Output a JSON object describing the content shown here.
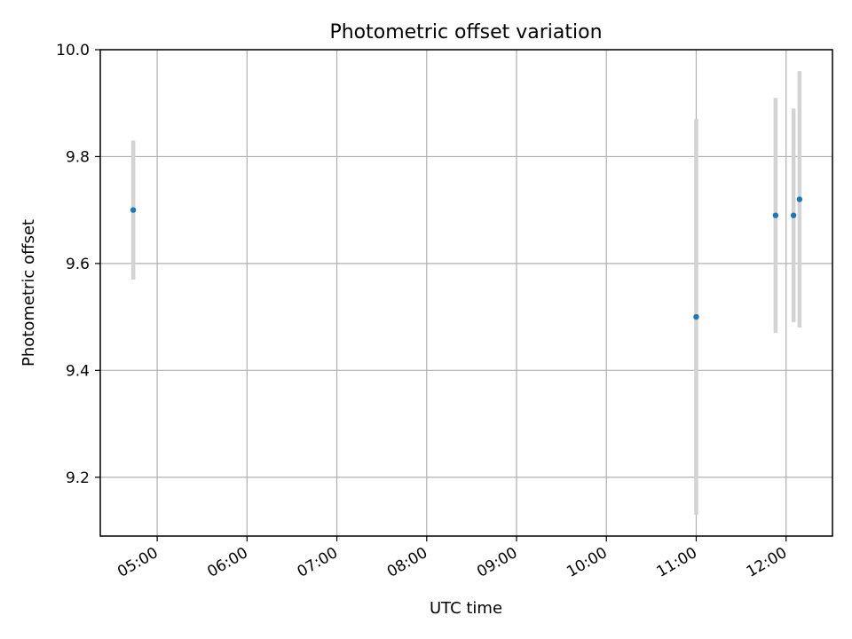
{
  "chart_data": {
    "type": "scatter",
    "title": "Photometric offset variation",
    "xlabel": "UTC time",
    "ylabel": "Photometric offset",
    "x_tick_labels": [
      "05:00",
      "06:00",
      "07:00",
      "08:00",
      "09:00",
      "10:00",
      "11:00",
      "12:00"
    ],
    "y_tick_labels": [
      "9.2",
      "9.4",
      "9.6",
      "9.8",
      "10.0"
    ],
    "y_ticks": [
      9.2,
      9.4,
      9.6,
      9.8,
      10.0
    ],
    "xlim": [
      "04:22",
      "12:31"
    ],
    "ylim": [
      9.09,
      10.0
    ],
    "grid": true,
    "points": [
      {
        "x": "04:44",
        "y": 9.7,
        "err_low": 9.57,
        "err_high": 9.83
      },
      {
        "x": "11:00",
        "y": 9.5,
        "err_low": 9.13,
        "err_high": 9.87
      },
      {
        "x": "11:53",
        "y": 9.69,
        "err_low": 9.47,
        "err_high": 9.91
      },
      {
        "x": "12:05",
        "y": 9.69,
        "err_low": 9.49,
        "err_high": 9.89
      },
      {
        "x": "12:09",
        "y": 9.72,
        "err_low": 9.48,
        "err_high": 9.96
      }
    ],
    "marker_color": "#1f77b4",
    "errorbar_color": "#d3d3d3",
    "grid_color": "#b0b0b0"
  }
}
